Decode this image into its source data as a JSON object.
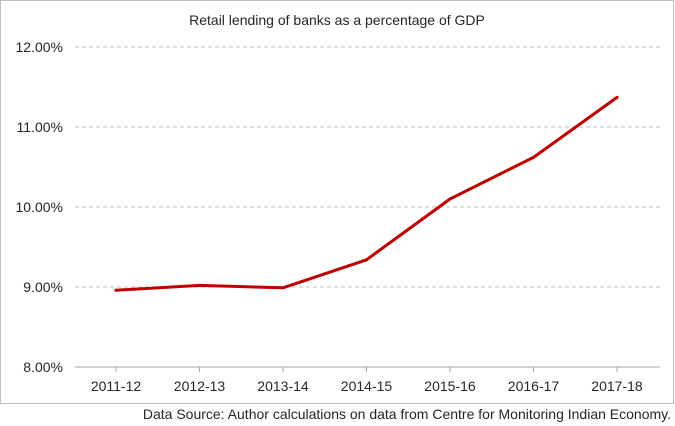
{
  "chart_data": {
    "type": "line",
    "title": "Retail lending of banks as a percentage of GDP",
    "xlabel": "",
    "ylabel": "",
    "categories": [
      "2011-12",
      "2012-13",
      "2013-14",
      "2014-15",
      "2015-16",
      "2016-17",
      "2017-18"
    ],
    "series": [
      {
        "values": [
          8.96,
          9.02,
          8.99,
          9.34,
          10.1,
          10.62,
          11.37
        ]
      }
    ],
    "ylim": [
      8.0,
      12.0
    ],
    "yticks": [
      8.0,
      9.0,
      10.0,
      11.0,
      12.0
    ],
    "ytick_labels": [
      "8.00%",
      "9.00%",
      "10.00%",
      "11.00%",
      "12.00%"
    ],
    "grid": true,
    "legend": "none"
  },
  "colors": {
    "line": "#c00000",
    "grid": "#bfbfbf",
    "axis": "#a6a6a6",
    "text": "#262626"
  },
  "footer": {
    "source": "Data Source: Author calculations on data from Centre for Monitoring Indian Economy."
  }
}
